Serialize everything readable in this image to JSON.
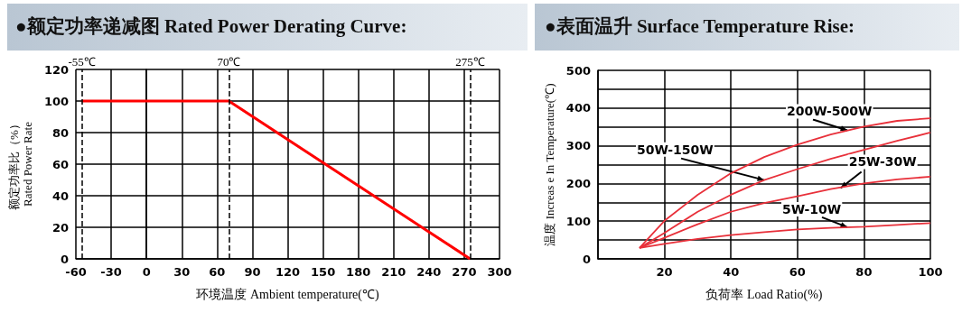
{
  "chart_data": [
    {
      "type": "line",
      "title": "●额定功率递减图 Rated Power Derating Curve:",
      "xlabel": "环境温度 Ambient temperature(℃)",
      "ylabel": "额定功率比（%）\nRated Power Rate",
      "x": [
        -55,
        70,
        275
      ],
      "series": [
        {
          "color": "#ff0000",
          "values": [
            100,
            100,
            0
          ]
        }
      ],
      "xlim": [
        -60,
        300
      ],
      "xticks": [
        -60,
        -30,
        0,
        30,
        60,
        90,
        120,
        150,
        180,
        210,
        240,
        270,
        300
      ],
      "ylim": [
        0,
        120
      ],
      "yticks": [
        0,
        20,
        40,
        60,
        80,
        100,
        120
      ],
      "ref_lines": [
        {
          "axis": "x",
          "value": -55,
          "label": "-55℃",
          "color": "#000000",
          "line_style": "dashed"
        },
        {
          "axis": "x",
          "value": 70,
          "label": "70℃",
          "color": "#000000",
          "line_style": "dashed"
        },
        {
          "axis": "x",
          "value": 275,
          "label": "275℃",
          "color": "#000000",
          "line_style": "dashed"
        }
      ],
      "grid": true,
      "marker": "none",
      "line_style": "solid"
    },
    {
      "type": "line",
      "title": "●表面温升 Surface Temperature Rise:",
      "xlabel": "负荷率 Load Ratio(%)",
      "ylabel": "温度 Increas e In Temperature(℃)",
      "series": [
        {
          "color": "#e8303a",
          "x": [
            12.5,
            20,
            30,
            40,
            50,
            60,
            70,
            80,
            90,
            100
          ],
          "values": [
            29,
            101,
            170,
            227,
            270,
            303,
            330,
            351,
            366,
            373
          ]
        },
        {
          "color": "#e8303a",
          "x": [
            12.5,
            20,
            30,
            40,
            50,
            60,
            70,
            80,
            90,
            100
          ],
          "values": [
            29,
            69,
            125,
            170,
            209,
            238,
            265,
            289,
            313,
            335
          ]
        },
        {
          "color": "#e8303a",
          "x": [
            12.5,
            20,
            30,
            40,
            50,
            60,
            70,
            80,
            90,
            100
          ],
          "values": [
            29,
            56,
            92,
            125,
            148,
            166,
            185,
            200,
            211,
            218
          ]
        },
        {
          "color": "#e8303a",
          "x": [
            12.5,
            20,
            30,
            40,
            50,
            60,
            70,
            80,
            90,
            100
          ],
          "values": [
            29,
            40,
            53,
            63,
            71,
            78,
            82,
            85,
            90,
            95
          ]
        }
      ],
      "annotations": [
        {
          "text": "200W-500W",
          "x": 75,
          "y": 341
        },
        {
          "text": "50W-150W",
          "x": 50,
          "y": 209
        },
        {
          "text": "25W-30W",
          "x": 73,
          "y": 188
        },
        {
          "text": "5W-10W",
          "x": 75,
          "y": 84
        }
      ],
      "xlim": [
        0,
        100
      ],
      "xticks": [
        {
          "value": 0,
          "label": null
        },
        20,
        40,
        60,
        80,
        100
      ],
      "ylim": [
        0,
        500
      ],
      "yticks": [
        0,
        {
          "value": 50,
          "label": null
        },
        100,
        {
          "value": 150,
          "label": null
        },
        200,
        {
          "value": 250,
          "label": null
        },
        300,
        {
          "value": 350,
          "label": null
        },
        400,
        {
          "value": 450,
          "label": null
        },
        500
      ],
      "grid": true,
      "marker": "none",
      "line_style": "solid"
    }
  ]
}
